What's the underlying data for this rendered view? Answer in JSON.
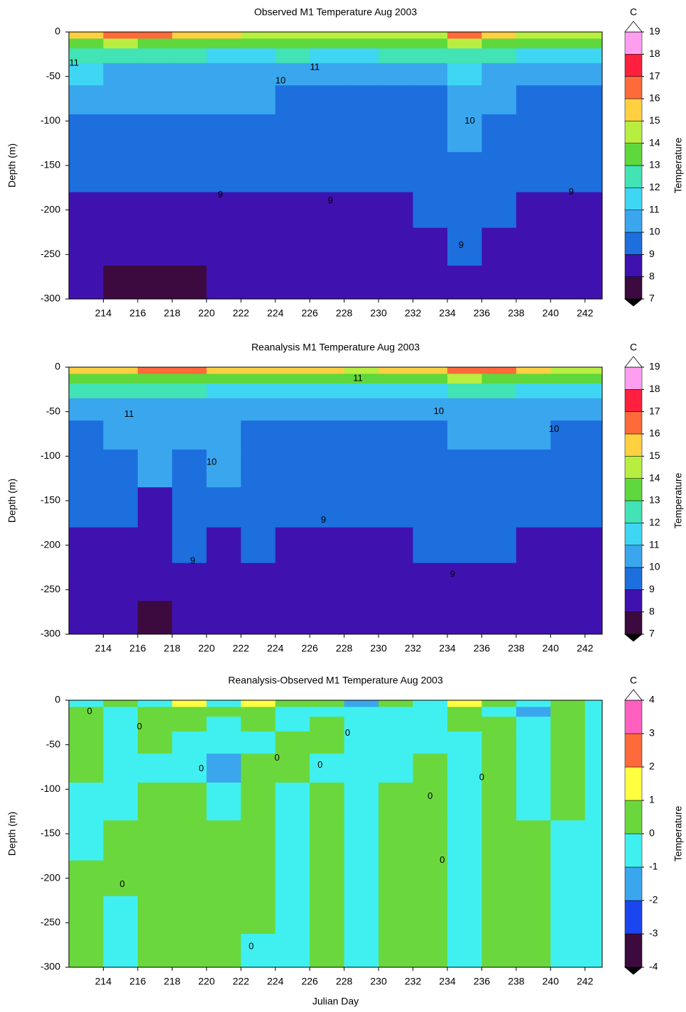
{
  "chart_data": [
    {
      "type": "contour",
      "title": "Observed  M1 Temperature Aug 2003",
      "ylabel": "Depth (m)",
      "colorbar_label": "Temperature",
      "colorbar_unit": "C",
      "xlim": [
        212,
        243
      ],
      "ylim": [
        -300,
        0
      ],
      "xticks": [
        214,
        216,
        218,
        220,
        222,
        224,
        226,
        228,
        230,
        232,
        234,
        236,
        238,
        240,
        242
      ],
      "yticks": [
        0,
        -50,
        -100,
        -150,
        -200,
        -250,
        -300
      ],
      "levels": [
        7,
        8,
        9,
        10,
        11,
        12,
        13,
        14,
        15,
        16,
        17,
        18,
        19
      ],
      "colors": [
        "#3d0a3f",
        "#3f12b0",
        "#1c6fdd",
        "#3aa6ee",
        "#3ed6f2",
        "#42e3b4",
        "#5ed83c",
        "#b8ee40",
        "#ffd040",
        "#ff6a3a",
        "#ff2040",
        "#ff9ef0"
      ],
      "under_color": "#000000",
      "over_color": "#ffffff",
      "x": [
        213,
        215,
        217,
        219,
        221,
        223,
        225,
        227,
        229,
        231,
        233,
        235,
        237,
        239,
        241,
        243
      ],
      "y": [
        -3,
        -12,
        -25,
        -45,
        -75,
        -110,
        -160,
        -200,
        -240,
        -285
      ],
      "z": [
        [
          15,
          16,
          16,
          15,
          15,
          14.5,
          14.5,
          14.5,
          14.5,
          14.5,
          14.5,
          16,
          15,
          14.5,
          14.5,
          14.5
        ],
        [
          13.5,
          14,
          13.5,
          13.5,
          13,
          13,
          13,
          13,
          13,
          13,
          13.5,
          14,
          13.5,
          13,
          13,
          13
        ],
        [
          12,
          12.5,
          12,
          12,
          11.5,
          11.5,
          12,
          11.5,
          11.5,
          12,
          12,
          12.5,
          12,
          11.5,
          11.5,
          11.5
        ],
        [
          11.2,
          10.5,
          10.5,
          10.5,
          10.5,
          10.5,
          10.8,
          10.5,
          10.5,
          10.5,
          10.5,
          11,
          10.5,
          10.5,
          10.5,
          10.5
        ],
        [
          10.5,
          10.5,
          10.5,
          10.5,
          10.5,
          10.5,
          9.5,
          9.5,
          9.5,
          9.5,
          9.5,
          10.5,
          10.5,
          9.5,
          9.5,
          9.5
        ],
        [
          9.5,
          9.5,
          9.5,
          9.5,
          9.5,
          9.5,
          9.5,
          9.5,
          9.5,
          9.5,
          9.5,
          10.2,
          9.5,
          9.5,
          9.5,
          9.5
        ],
        [
          9.5,
          9.5,
          9.5,
          9.5,
          9.5,
          9.5,
          9.5,
          9.5,
          9.5,
          9.5,
          9.5,
          9.5,
          9.5,
          9.5,
          9.5,
          9.5
        ],
        [
          8.6,
          8.7,
          8.8,
          8.6,
          8.7,
          8.6,
          8.4,
          8.7,
          8.7,
          8.4,
          9.3,
          9.5,
          9.2,
          8.8,
          8.5,
          8.5
        ],
        [
          8.5,
          8.5,
          8.5,
          8.5,
          8.5,
          8.5,
          8.5,
          8.5,
          8.5,
          8.5,
          8.8,
          9.3,
          8.7,
          8.5,
          8.5,
          8.5
        ],
        [
          8.3,
          7.8,
          7.8,
          7.9,
          8.2,
          8.3,
          8.4,
          8.3,
          8.4,
          8.4,
          8.4,
          8.4,
          8.3,
          8.3,
          8.2,
          8.3
        ]
      ],
      "contour_labels": [
        {
          "value": 11,
          "x": 212.3,
          "y": -35
        },
        {
          "value": 11,
          "x": 226.3,
          "y": -40
        },
        {
          "value": 10,
          "x": 224.3,
          "y": -55
        },
        {
          "value": 10,
          "x": 235.3,
          "y": -100
        },
        {
          "value": 9,
          "x": 220.8,
          "y": -183
        },
        {
          "value": 9,
          "x": 227.2,
          "y": -190
        },
        {
          "value": 9,
          "x": 234.8,
          "y": -240
        },
        {
          "value": 9,
          "x": 241.2,
          "y": -180
        }
      ]
    },
    {
      "type": "contour",
      "title": "Reanalysis  M1 Temperature Aug 2003",
      "ylabel": "Depth (m)",
      "colorbar_label": "Temperature",
      "colorbar_unit": "C",
      "xlim": [
        212,
        243
      ],
      "ylim": [
        -300,
        0
      ],
      "xticks": [
        214,
        216,
        218,
        220,
        222,
        224,
        226,
        228,
        230,
        232,
        234,
        236,
        238,
        240,
        242
      ],
      "yticks": [
        0,
        -50,
        -100,
        -150,
        -200,
        -250,
        -300
      ],
      "levels": [
        7,
        8,
        9,
        10,
        11,
        12,
        13,
        14,
        15,
        16,
        17,
        18,
        19
      ],
      "colors": [
        "#3d0a3f",
        "#3f12b0",
        "#1c6fdd",
        "#3aa6ee",
        "#3ed6f2",
        "#42e3b4",
        "#5ed83c",
        "#b8ee40",
        "#ffd040",
        "#ff6a3a",
        "#ff2040",
        "#ff9ef0"
      ],
      "under_color": "#000000",
      "over_color": "#ffffff",
      "x": [
        213,
        215,
        217,
        219,
        221,
        223,
        225,
        227,
        229,
        231,
        233,
        235,
        237,
        239,
        241,
        243
      ],
      "y": [
        -3,
        -12,
        -25,
        -45,
        -75,
        -110,
        -160,
        -200,
        -240,
        -285
      ],
      "z": [
        [
          15,
          15.5,
          16,
          16,
          15.5,
          15,
          15,
          15,
          14.5,
          15,
          15,
          16.5,
          16,
          15,
          14.5,
          14.5
        ],
        [
          13.5,
          13.5,
          13.5,
          13.5,
          13,
          13,
          13,
          13,
          13,
          13,
          13,
          14,
          13.5,
          13,
          13,
          13
        ],
        [
          12,
          12,
          12,
          12,
          11.5,
          11.5,
          11.5,
          11.5,
          11.5,
          11.5,
          11.5,
          12,
          12,
          11.5,
          11.5,
          11.5
        ],
        [
          10.5,
          10.8,
          10.5,
          10.5,
          10.5,
          10.5,
          10.8,
          10.8,
          10.5,
          10.5,
          10.8,
          10.5,
          10.5,
          10.5,
          10.5,
          10.5
        ],
        [
          9.5,
          10.5,
          10.5,
          10.5,
          10.5,
          9.5,
          9.5,
          9.5,
          9.5,
          9.5,
          9.5,
          10.5,
          10.3,
          10.5,
          9.5,
          9.5
        ],
        [
          9.5,
          9.5,
          10.2,
          9.5,
          10.2,
          9.5,
          9.5,
          9.5,
          9.5,
          9.5,
          9.5,
          9.5,
          9.5,
          9.5,
          9.5,
          9.5
        ],
        [
          9.5,
          9.5,
          8.8,
          9.5,
          9.5,
          9.5,
          9.5,
          9.5,
          9.5,
          9.5,
          9.5,
          9.5,
          9.5,
          9.5,
          9.5,
          9.5
        ],
        [
          8.7,
          8.7,
          8.5,
          9.3,
          8.8,
          9.2,
          8.5,
          8.5,
          8.5,
          8.6,
          9.3,
          9,
          9.2,
          8.9,
          8.6,
          8.5
        ],
        [
          8.5,
          8.5,
          8.5,
          8.6,
          8.5,
          8.5,
          8.5,
          8.5,
          8.5,
          8.5,
          8.8,
          8.6,
          8.5,
          8.5,
          8.5,
          8.5
        ],
        [
          8.3,
          8.2,
          7.8,
          8.3,
          8.3,
          8.4,
          8.4,
          8.4,
          8.4,
          8.4,
          8.4,
          8.3,
          8.4,
          8.2,
          8.2,
          8.3
        ]
      ],
      "contour_labels": [
        {
          "value": 11,
          "x": 228.8,
          "y": -13
        },
        {
          "value": 11,
          "x": 215.5,
          "y": -53
        },
        {
          "value": 10,
          "x": 233.5,
          "y": -50
        },
        {
          "value": 10,
          "x": 240.2,
          "y": -70
        },
        {
          "value": 10,
          "x": 220.3,
          "y": -107
        },
        {
          "value": 9,
          "x": 226.8,
          "y": -172
        },
        {
          "value": 9,
          "x": 219.2,
          "y": -218
        },
        {
          "value": 9,
          "x": 234.3,
          "y": -233
        }
      ]
    },
    {
      "type": "contour",
      "title": "Reanalysis-Observed  M1 Temperature Aug 2003",
      "ylabel": "Depth (m)",
      "xlabel": "Julian Day",
      "colorbar_label": "Temperature",
      "colorbar_unit": "C",
      "xlim": [
        212,
        243
      ],
      "ylim": [
        -300,
        0
      ],
      "xticks": [
        214,
        216,
        218,
        220,
        222,
        224,
        226,
        228,
        230,
        232,
        234,
        236,
        238,
        240,
        242
      ],
      "yticks": [
        0,
        -50,
        -100,
        -150,
        -200,
        -250,
        -300
      ],
      "levels": [
        -4,
        -3,
        -2,
        -1,
        0,
        1,
        2,
        3,
        4
      ],
      "colors": [
        "#3d0a3f",
        "#1a46f0",
        "#3aa6ee",
        "#40f0f0",
        "#6ad83c",
        "#ffff40",
        "#ff6a3a",
        "#ff60c0"
      ],
      "under_color": "#000000",
      "over_color": "#ffffff",
      "x": [
        213,
        215,
        217,
        219,
        221,
        223,
        225,
        227,
        229,
        231,
        233,
        235,
        237,
        239,
        241,
        243
      ],
      "y": [
        -3,
        -12,
        -25,
        -45,
        -75,
        -110,
        -160,
        -200,
        -240,
        -285
      ],
      "z": [
        [
          -0.5,
          0.5,
          -0.5,
          1.5,
          -0.5,
          1.5,
          0.5,
          0.5,
          -1.5,
          0.5,
          -0.5,
          1.5,
          0.5,
          -0.5,
          0.5,
          -0.5
        ],
        [
          0.5,
          -0.5,
          0.5,
          0.5,
          0.5,
          0.5,
          -0.5,
          -0.5,
          -0.5,
          -0.5,
          -0.5,
          0.5,
          -0.5,
          -1.5,
          0.5,
          -0.5
        ],
        [
          0.5,
          -0.5,
          0.5,
          0.5,
          -0.5,
          0.5,
          -0.5,
          0.5,
          -0.5,
          -0.5,
          -0.5,
          0.5,
          0.5,
          -0.5,
          0.5,
          -0.5
        ],
        [
          0.5,
          -0.5,
          0.5,
          -0.5,
          -0.5,
          -0.5,
          0.5,
          0.5,
          -0.5,
          -0.5,
          -0.5,
          -0.5,
          0.5,
          -0.5,
          0.5,
          -0.5
        ],
        [
          0.5,
          -0.5,
          -0.5,
          -0.5,
          -1.5,
          0.5,
          0.5,
          -0.5,
          -0.5,
          -0.5,
          0.5,
          -0.5,
          0.5,
          -0.5,
          0.5,
          -0.5
        ],
        [
          -0.5,
          -0.5,
          0.5,
          0.5,
          -0.5,
          0.5,
          -0.5,
          0.5,
          -0.5,
          0.5,
          0.5,
          -0.5,
          0.5,
          -0.5,
          0.5,
          -0.5
        ],
        [
          -0.5,
          0.5,
          0.5,
          0.5,
          0.5,
          0.5,
          -0.5,
          0.5,
          -0.5,
          0.5,
          0.5,
          -0.5,
          0.5,
          0.5,
          -0.5,
          -0.5
        ],
        [
          0.5,
          0.5,
          0.5,
          0.5,
          0.5,
          0.5,
          -0.5,
          0.5,
          -0.5,
          0.5,
          0.5,
          -0.5,
          0.5,
          0.5,
          -0.5,
          -0.5
        ],
        [
          0.5,
          -0.5,
          0.5,
          0.5,
          0.5,
          0.5,
          -0.5,
          0.5,
          -0.5,
          0.5,
          0.5,
          -0.5,
          0.5,
          0.5,
          -0.5,
          -0.5
        ],
        [
          0.5,
          -0.5,
          0.5,
          0.5,
          0.5,
          -0.5,
          -0.5,
          0.5,
          -0.5,
          0.5,
          0.5,
          -0.5,
          0.5,
          0.5,
          -0.5,
          -0.5
        ]
      ],
      "contour_labels": [
        {
          "value": 0,
          "x": 213.2,
          "y": -13
        },
        {
          "value": 0,
          "x": 216.1,
          "y": -30
        },
        {
          "value": 0,
          "x": 228.2,
          "y": -37
        },
        {
          "value": 0,
          "x": 219.7,
          "y": -77
        },
        {
          "value": 0,
          "x": 224.1,
          "y": -65
        },
        {
          "value": 0,
          "x": 226.6,
          "y": -73
        },
        {
          "value": 0,
          "x": 215.1,
          "y": -207
        },
        {
          "value": 0,
          "x": 222.6,
          "y": -277
        },
        {
          "value": 0,
          "x": 233,
          "y": -108
        },
        {
          "value": 0,
          "x": 233.7,
          "y": -180
        },
        {
          "value": 0,
          "x": 236,
          "y": -87
        }
      ]
    }
  ]
}
